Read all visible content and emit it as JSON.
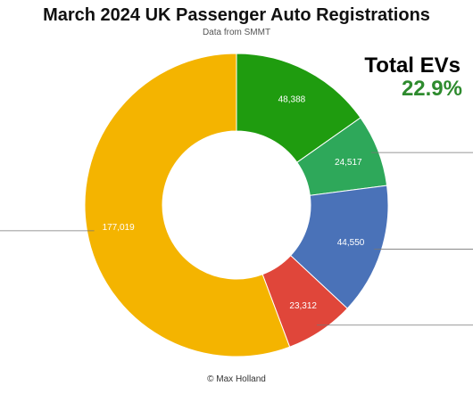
{
  "page": {
    "title": "March 2024 UK Passenger Auto Registrations",
    "subtitle": "Data from SMMT",
    "credit": "© Max Holland"
  },
  "ev_callout": {
    "label": "Total EVs",
    "value": "22.9%",
    "label_color": "#000000",
    "value_color": "#2e8b2e"
  },
  "chart_data": {
    "type": "pie",
    "donut": true,
    "start_angle_deg": 0,
    "direction": "clockwise",
    "slices": [
      {
        "value": 48388,
        "label": "48,388",
        "color": "#1f9c0f",
        "label_color": "#ffffff"
      },
      {
        "value": 24517,
        "label": "24,517",
        "color": "#2ea85a",
        "label_color": "#ffffff"
      },
      {
        "value": 44550,
        "label": "44,550",
        "color": "#4a72b8",
        "label_color": "#ffffff"
      },
      {
        "value": 23312,
        "label": "23,312",
        "color": "#e0463a",
        "label_color": "#ffffff"
      },
      {
        "value": 177019,
        "label": "177,019",
        "color": "#f4b400",
        "label_color": "#222222"
      }
    ]
  }
}
